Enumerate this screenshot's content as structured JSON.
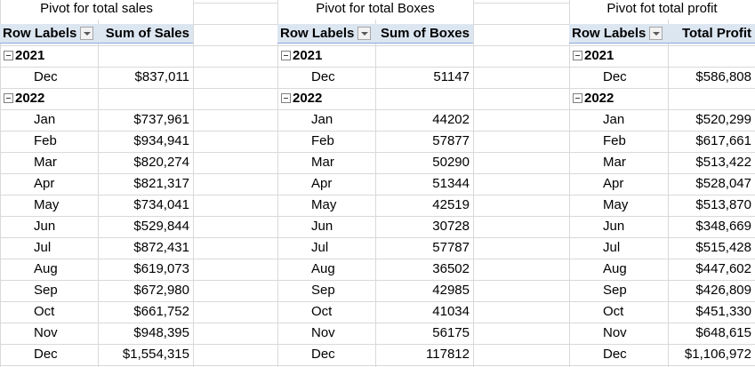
{
  "pivots": [
    {
      "title": "Pivot for total sales",
      "row_labels_header": "Row Labels",
      "value_header": "Sum of Sales",
      "years": [
        {
          "year": "2021",
          "months": [
            {
              "m": "Dec",
              "v": "$837,011"
            }
          ]
        },
        {
          "year": "2022",
          "months": [
            {
              "m": "Jan",
              "v": "$737,961"
            },
            {
              "m": "Feb",
              "v": "$934,941"
            },
            {
              "m": "Mar",
              "v": "$820,274"
            },
            {
              "m": "Apr",
              "v": "$821,317"
            },
            {
              "m": "May",
              "v": "$734,041"
            },
            {
              "m": "Jun",
              "v": "$529,844"
            },
            {
              "m": "Jul",
              "v": "$872,431"
            },
            {
              "m": "Aug",
              "v": "$619,073"
            },
            {
              "m": "Sep",
              "v": "$672,980"
            },
            {
              "m": "Oct",
              "v": "$661,752"
            },
            {
              "m": "Nov",
              "v": "$948,395"
            },
            {
              "m": "Dec",
              "v": "$1,554,315"
            }
          ]
        }
      ]
    },
    {
      "title": "Pivot for total Boxes",
      "row_labels_header": "Row Labels",
      "value_header": "Sum of Boxes",
      "years": [
        {
          "year": "2021",
          "months": [
            {
              "m": "Dec",
              "v": "51147"
            }
          ]
        },
        {
          "year": "2022",
          "months": [
            {
              "m": "Jan",
              "v": "44202"
            },
            {
              "m": "Feb",
              "v": "57877"
            },
            {
              "m": "Mar",
              "v": "50290"
            },
            {
              "m": "Apr",
              "v": "51344"
            },
            {
              "m": "May",
              "v": "42519"
            },
            {
              "m": "Jun",
              "v": "30728"
            },
            {
              "m": "Jul",
              "v": "57787"
            },
            {
              "m": "Aug",
              "v": "36502"
            },
            {
              "m": "Sep",
              "v": "42985"
            },
            {
              "m": "Oct",
              "v": "41034"
            },
            {
              "m": "Nov",
              "v": "56175"
            },
            {
              "m": "Dec",
              "v": "117812"
            }
          ]
        }
      ]
    },
    {
      "title": "Pivot fot total profit",
      "row_labels_header": "Row Labels",
      "value_header": "Total Profit",
      "years": [
        {
          "year": "2021",
          "months": [
            {
              "m": "Dec",
              "v": "$586,808"
            }
          ]
        },
        {
          "year": "2022",
          "months": [
            {
              "m": "Jan",
              "v": "$520,299"
            },
            {
              "m": "Feb",
              "v": "$617,661"
            },
            {
              "m": "Mar",
              "v": "$513,422"
            },
            {
              "m": "Apr",
              "v": "$528,047"
            },
            {
              "m": "May",
              "v": "$513,870"
            },
            {
              "m": "Jun",
              "v": "$348,669"
            },
            {
              "m": "Jul",
              "v": "$515,428"
            },
            {
              "m": "Aug",
              "v": "$447,602"
            },
            {
              "m": "Sep",
              "v": "$426,809"
            },
            {
              "m": "Oct",
              "v": "$451,330"
            },
            {
              "m": "Nov",
              "v": "$648,615"
            },
            {
              "m": "Dec",
              "v": "$1,106,972"
            }
          ]
        }
      ]
    }
  ]
}
